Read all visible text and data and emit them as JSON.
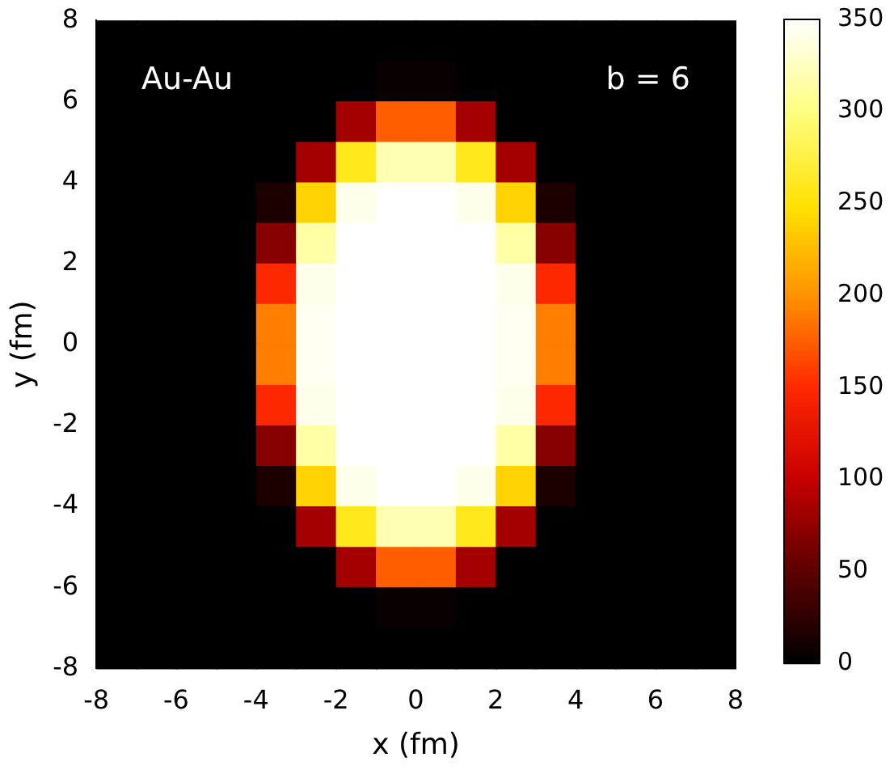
{
  "chart_data": {
    "type": "heatmap",
    "xlabel": "x (fm)",
    "ylabel": "y (fm)",
    "annotations": [
      "Au-Au",
      "b = 6"
    ],
    "x": [
      -7.5,
      -6.5,
      -5.5,
      -4.5,
      -3.5,
      -2.5,
      -1.5,
      -0.5,
      0.5,
      1.5,
      2.5,
      3.5,
      4.5,
      5.5,
      6.5,
      7.5
    ],
    "y": [
      7.5,
      6.5,
      5.5,
      4.5,
      3.5,
      2.5,
      1.5,
      0.5,
      -0.5,
      -1.5,
      -2.5,
      -3.5,
      -4.5,
      -5.5,
      -6.5,
      -7.5
    ],
    "xlim": [
      -8,
      8
    ],
    "xticks": [
      -8,
      -6,
      -4,
      -2,
      0,
      2,
      4,
      6,
      8
    ],
    "ylim": [
      -8,
      8
    ],
    "yticks": [
      -8,
      -6,
      -4,
      -2,
      0,
      2,
      4,
      6,
      8
    ],
    "clim": [
      0,
      350
    ],
    "cticks": [
      0,
      50,
      100,
      150,
      200,
      250,
      300,
      350
    ],
    "cells": [
      [
        0,
        0,
        0,
        0,
        0,
        0,
        0,
        0,
        0,
        0,
        0,
        0,
        0,
        0,
        0,
        0
      ],
      [
        0,
        0,
        0,
        0,
        0,
        0,
        0,
        5,
        5,
        0,
        0,
        0,
        0,
        0,
        0,
        0
      ],
      [
        0,
        0,
        0,
        0,
        0,
        0,
        85,
        175,
        175,
        85,
        0,
        0,
        0,
        0,
        0,
        0
      ],
      [
        0,
        0,
        0,
        0,
        0,
        85,
        260,
        320,
        320,
        260,
        85,
        0,
        0,
        0,
        0,
        0
      ],
      [
        0,
        0,
        0,
        0,
        15,
        240,
        342,
        350,
        350,
        342,
        240,
        15,
        0,
        0,
        0,
        0
      ],
      [
        0,
        0,
        0,
        0,
        70,
        315,
        350,
        350,
        350,
        350,
        315,
        70,
        0,
        0,
        0,
        0
      ],
      [
        0,
        0,
        0,
        0,
        150,
        342,
        350,
        350,
        350,
        350,
        342,
        150,
        0,
        0,
        0,
        0
      ],
      [
        0,
        0,
        0,
        0,
        190,
        345,
        350,
        350,
        350,
        350,
        345,
        190,
        0,
        0,
        0,
        0
      ],
      [
        0,
        0,
        0,
        0,
        190,
        345,
        350,
        350,
        350,
        350,
        345,
        190,
        0,
        0,
        0,
        0
      ],
      [
        0,
        0,
        0,
        0,
        150,
        342,
        350,
        350,
        350,
        350,
        342,
        150,
        0,
        0,
        0,
        0
      ],
      [
        0,
        0,
        0,
        0,
        70,
        315,
        350,
        350,
        350,
        350,
        315,
        70,
        0,
        0,
        0,
        0
      ],
      [
        0,
        0,
        0,
        0,
        15,
        240,
        342,
        350,
        350,
        342,
        240,
        15,
        0,
        0,
        0,
        0
      ],
      [
        0,
        0,
        0,
        0,
        0,
        85,
        260,
        320,
        320,
        260,
        85,
        0,
        0,
        0,
        0,
        0
      ],
      [
        0,
        0,
        0,
        0,
        0,
        0,
        85,
        175,
        175,
        85,
        0,
        0,
        0,
        0,
        0,
        0
      ],
      [
        0,
        0,
        0,
        0,
        0,
        0,
        0,
        5,
        5,
        0,
        0,
        0,
        0,
        0,
        0,
        0
      ],
      [
        0,
        0,
        0,
        0,
        0,
        0,
        0,
        0,
        0,
        0,
        0,
        0,
        0,
        0,
        0,
        0
      ]
    ]
  }
}
